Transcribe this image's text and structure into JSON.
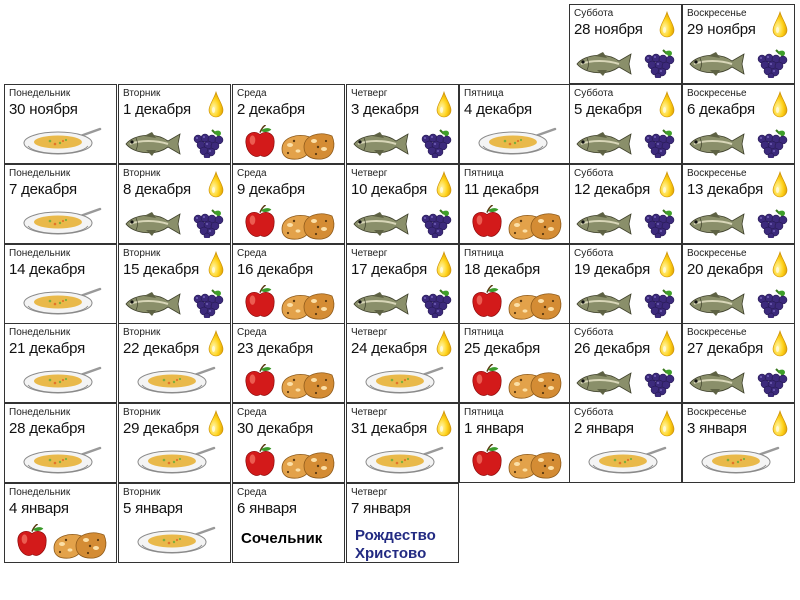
{
  "calendar": {
    "days": [
      {
        "weekday": "Суббота",
        "date": "28 ноября",
        "oil": true,
        "foods": [
          "fish",
          "grapes"
        ]
      },
      {
        "weekday": "Воскресенье",
        "date": "29 ноября",
        "oil": true,
        "foods": [
          "fish",
          "grapes"
        ]
      },
      {
        "weekday": "Понедельник",
        "date": "30 ноября",
        "oil": false,
        "foods": [
          "soup"
        ]
      },
      {
        "weekday": "Вторник",
        "date": "1 декабря",
        "oil": true,
        "foods": [
          "fish",
          "grapes"
        ]
      },
      {
        "weekday": "Среда",
        "date": "2 декабря",
        "oil": false,
        "foods": [
          "apple",
          "bread"
        ]
      },
      {
        "weekday": "Четверг",
        "date": "3 декабря",
        "oil": true,
        "foods": [
          "fish",
          "grapes"
        ]
      },
      {
        "weekday": "Пятница",
        "date": "4 декабря",
        "oil": false,
        "foods": [
          "soup"
        ]
      },
      {
        "weekday": "Суббота",
        "date": "5 декабря",
        "oil": true,
        "foods": [
          "fish",
          "grapes"
        ]
      },
      {
        "weekday": "Воскресенье",
        "date": "6 декабря",
        "oil": true,
        "foods": [
          "fish",
          "grapes"
        ]
      },
      {
        "weekday": "Понедельник",
        "date": "7 декабря",
        "oil": false,
        "foods": [
          "soup"
        ]
      },
      {
        "weekday": "Вторник",
        "date": "8 декабря",
        "oil": true,
        "foods": [
          "fish",
          "grapes"
        ]
      },
      {
        "weekday": "Среда",
        "date": "9 декабря",
        "oil": false,
        "foods": [
          "apple",
          "bread"
        ]
      },
      {
        "weekday": "Четверг",
        "date": "10 декабря",
        "oil": true,
        "foods": [
          "fish",
          "grapes"
        ]
      },
      {
        "weekday": "Пятница",
        "date": "11 декабря",
        "oil": false,
        "foods": [
          "apple",
          "bread"
        ]
      },
      {
        "weekday": "Суббота",
        "date": "12 декабря",
        "oil": true,
        "foods": [
          "fish",
          "grapes"
        ]
      },
      {
        "weekday": "Воскресенье",
        "date": "13 декабря",
        "oil": true,
        "foods": [
          "fish",
          "grapes"
        ]
      },
      {
        "weekday": "Понедельник",
        "date": "14 декабря",
        "oil": false,
        "foods": [
          "soup"
        ]
      },
      {
        "weekday": "Вторник",
        "date": "15 декабря",
        "oil": true,
        "foods": [
          "fish",
          "grapes"
        ]
      },
      {
        "weekday": "Среда",
        "date": "16 декабря",
        "oil": false,
        "foods": [
          "apple",
          "bread"
        ]
      },
      {
        "weekday": "Четверг",
        "date": "17 декабря",
        "oil": true,
        "foods": [
          "fish",
          "grapes"
        ]
      },
      {
        "weekday": "Пятница",
        "date": "18 декабря",
        "oil": false,
        "foods": [
          "apple",
          "bread"
        ]
      },
      {
        "weekday": "Суббота",
        "date": "19 декабря",
        "oil": true,
        "foods": [
          "fish",
          "grapes"
        ]
      },
      {
        "weekday": "Воскресенье",
        "date": "20 декабря",
        "oil": true,
        "foods": [
          "fish",
          "grapes"
        ]
      },
      {
        "weekday": "Понедельник",
        "date": "21 декабря",
        "oil": false,
        "foods": [
          "soup"
        ]
      },
      {
        "weekday": "Вторник",
        "date": "22 декабря",
        "oil": true,
        "foods": [
          "soup"
        ]
      },
      {
        "weekday": "Среда",
        "date": "23 декабря",
        "oil": false,
        "foods": [
          "apple",
          "bread"
        ]
      },
      {
        "weekday": "Четверг",
        "date": "24 декабря",
        "oil": true,
        "foods": [
          "soup"
        ]
      },
      {
        "weekday": "Пятница",
        "date": "25 декабря",
        "oil": false,
        "foods": [
          "apple",
          "bread"
        ]
      },
      {
        "weekday": "Суббота",
        "date": "26 декабря",
        "oil": true,
        "foods": [
          "fish",
          "grapes"
        ]
      },
      {
        "weekday": "Воскресенье",
        "date": "27 декабря",
        "oil": true,
        "foods": [
          "fish",
          "grapes"
        ]
      },
      {
        "weekday": "Понедельник",
        "date": "28 декабря",
        "oil": false,
        "foods": [
          "soup"
        ]
      },
      {
        "weekday": "Вторник",
        "date": "29 декабря",
        "oil": true,
        "foods": [
          "soup"
        ]
      },
      {
        "weekday": "Среда",
        "date": "30 декабря",
        "oil": false,
        "foods": [
          "apple",
          "bread"
        ]
      },
      {
        "weekday": "Четверг",
        "date": "31 декабря",
        "oil": true,
        "foods": [
          "soup"
        ]
      },
      {
        "weekday": "Пятница",
        "date": "1 января",
        "oil": false,
        "foods": [
          "apple",
          "bread"
        ]
      },
      {
        "weekday": "Суббота",
        "date": "2 января",
        "oil": true,
        "foods": [
          "soup"
        ]
      },
      {
        "weekday": "Воскресенье",
        "date": "3 января",
        "oil": true,
        "foods": [
          "soup"
        ]
      },
      {
        "weekday": "Понедельник",
        "date": "4 января",
        "oil": false,
        "foods": [
          "apple",
          "bread"
        ]
      },
      {
        "weekday": "Вторник",
        "date": "5 января",
        "oil": false,
        "foods": [
          "soup"
        ]
      },
      {
        "weekday": "Среда",
        "date": "6 января",
        "oil": false,
        "foods": [],
        "note": "Сочельник",
        "note_style": "sochelnik"
      },
      {
        "weekday": "Четверг",
        "date": "7 января",
        "oil": false,
        "foods": [],
        "note": "Рождество\nХристово",
        "note_style": "xmas"
      }
    ]
  },
  "colors": {
    "border": "#333333",
    "oil": "#f5c400",
    "xmas_text": "#222a82"
  },
  "icons": {
    "oil": "oil-drop-icon",
    "fish": "fish-icon",
    "grapes": "grapes-icon",
    "soup": "soup-bowl-icon",
    "apple": "apple-icon",
    "bread": "bread-icon"
  }
}
